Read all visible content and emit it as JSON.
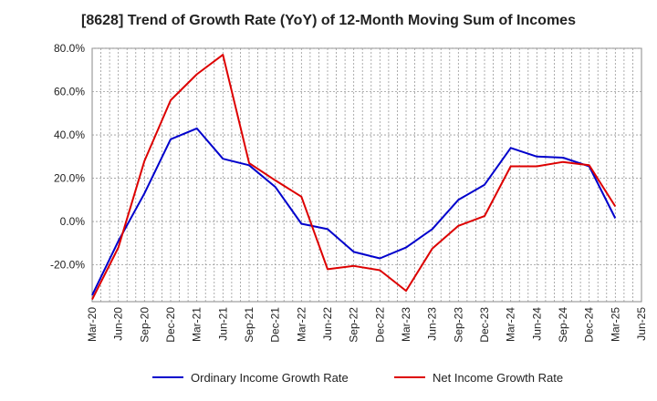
{
  "chart_data": {
    "type": "line",
    "title": "[8628]  Trend of Growth Rate (YoY) of 12-Month Moving Sum of Incomes",
    "xlabel": "",
    "ylabel": "",
    "x": [
      "Mar-20",
      "Jun-20",
      "Sep-20",
      "Dec-20",
      "Mar-21",
      "Jun-21",
      "Sep-21",
      "Dec-21",
      "Mar-22",
      "Jun-22",
      "Sep-22",
      "Dec-22",
      "Mar-23",
      "Jun-23",
      "Sep-23",
      "Dec-23",
      "Mar-24",
      "Jun-24",
      "Sep-24",
      "Dec-24",
      "Mar-25",
      "Jun-25"
    ],
    "x_ticks": [
      "Mar-20",
      "Jun-20",
      "Sep-20",
      "Dec-20",
      "Mar-21",
      "Jun-21",
      "Sep-21",
      "Dec-21",
      "Mar-22",
      "Jun-22",
      "Sep-22",
      "Dec-22",
      "Mar-23",
      "Jun-23",
      "Sep-23",
      "Dec-23",
      "Mar-24",
      "Jun-24",
      "Sep-24",
      "Dec-24",
      "Mar-25",
      "Jun-25"
    ],
    "y_ticks": [
      "80.0%",
      "60.0%",
      "40.0%",
      "20.0%",
      "0.0%",
      "-20.0%"
    ],
    "y_tick_values": [
      80,
      60,
      40,
      20,
      0,
      -20
    ],
    "ylim": [
      -37,
      80
    ],
    "grid": true,
    "legend_position": "bottom",
    "series": [
      {
        "name": "Ordinary Income Growth Rate",
        "color": "#0000cc",
        "values": [
          -34,
          -9,
          13,
          38,
          43,
          29,
          26,
          16,
          -1,
          -3.5,
          -14,
          -17,
          -12,
          -3.5,
          10,
          17,
          34,
          30,
          29.5,
          25.5,
          1.5,
          null
        ]
      },
      {
        "name": "Net Income Growth Rate",
        "color": "#dd0000",
        "values": [
          -36,
          -12,
          28,
          56,
          68,
          77,
          27,
          19,
          11.5,
          -22,
          -20.5,
          -22.5,
          -32,
          -12.5,
          -2,
          2.5,
          25.5,
          25.5,
          27.5,
          26,
          7,
          null
        ]
      }
    ]
  }
}
